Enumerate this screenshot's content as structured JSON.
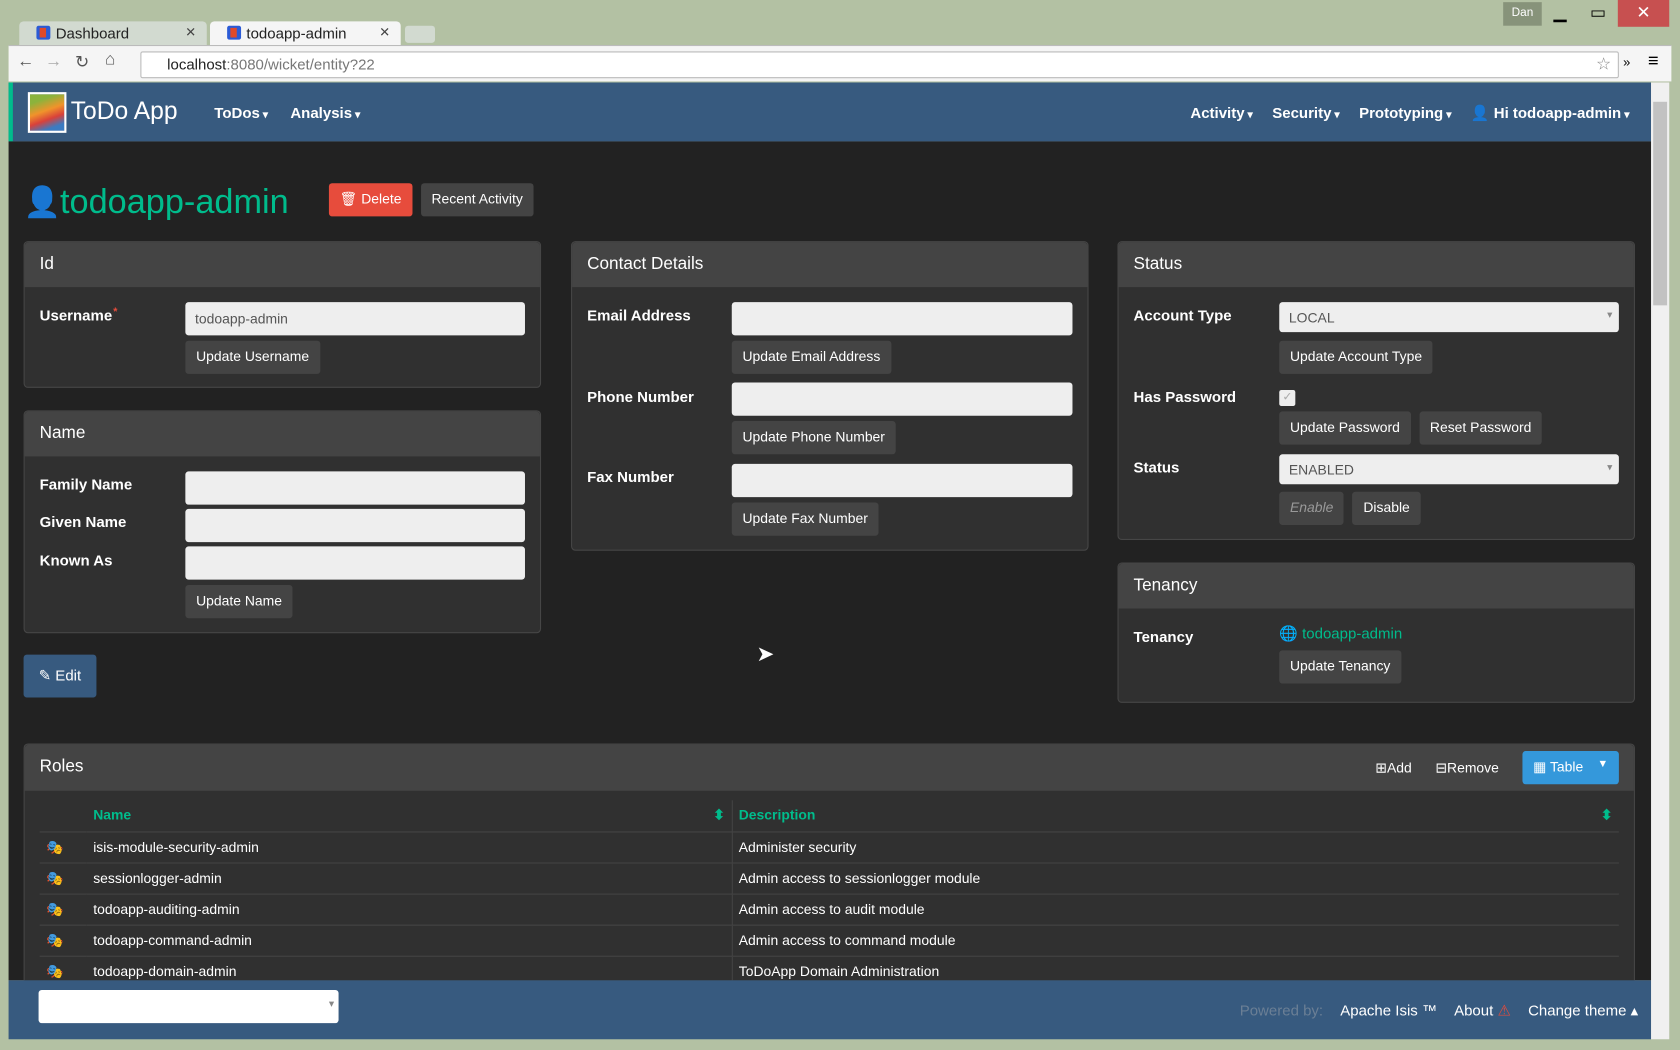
{
  "browser": {
    "tabs": [
      {
        "title": "Dashboard"
      },
      {
        "title": "todoapp-admin"
      }
    ],
    "url_host": "localhost",
    "url_rest": ":8080/wicket/entity?22",
    "user_badge": "Dan"
  },
  "navbar": {
    "brand": "ToDo App",
    "left": [
      "ToDos",
      "Analysis"
    ],
    "right": [
      "Activity",
      "Security",
      "Prototyping",
      "Hi todoapp-admin"
    ]
  },
  "entity": {
    "title": "todoapp-admin",
    "delete": "Delete",
    "recent": "Recent Activity",
    "edit": "Edit"
  },
  "id_panel": {
    "title": "Id",
    "username_label": "Username",
    "username_value": "todoapp-admin",
    "update_username": "Update Username"
  },
  "name_panel": {
    "title": "Name",
    "family": "Family Name",
    "given": "Given Name",
    "known": "Known As",
    "update": "Update Name"
  },
  "contact": {
    "title": "Contact Details",
    "email": "Email Address",
    "update_email": "Update Email Address",
    "phone": "Phone Number",
    "update_phone": "Update Phone Number",
    "fax": "Fax Number",
    "update_fax": "Update Fax Number"
  },
  "status": {
    "title": "Status",
    "account_type": "Account Type",
    "account_type_value": "LOCAL",
    "update_account_type": "Update Account Type",
    "has_password": "Has Password",
    "has_password_checked": true,
    "update_password": "Update Password",
    "reset_password": "Reset Password",
    "status_label": "Status",
    "status_value": "ENABLED",
    "enable": "Enable",
    "disable": "Disable"
  },
  "tenancy": {
    "title": "Tenancy",
    "label": "Tenancy",
    "value": "todoapp-admin",
    "update": "Update Tenancy"
  },
  "roles": {
    "title": "Roles",
    "add": "Add",
    "remove": "Remove",
    "view": "Table",
    "columns": [
      "Name",
      "Description"
    ],
    "rows": [
      [
        "isis-module-security-admin",
        "Administer security"
      ],
      [
        "sessionlogger-admin",
        "Admin access to sessionlogger module"
      ],
      [
        "todoapp-auditing-admin",
        "Admin access to audit module"
      ],
      [
        "todoapp-command-admin",
        "Admin access to command module"
      ],
      [
        "todoapp-domain-admin",
        "ToDoApp Domain Administration"
      ]
    ]
  },
  "footer": {
    "powered": "Powered by:",
    "isis": "Apache Isis ™",
    "about": "About",
    "theme": "Change theme"
  },
  "colors": {
    "accent": "#00bc8c",
    "navbar": "#375a7f",
    "danger": "#e74c3c",
    "primary": "#3498db"
  }
}
